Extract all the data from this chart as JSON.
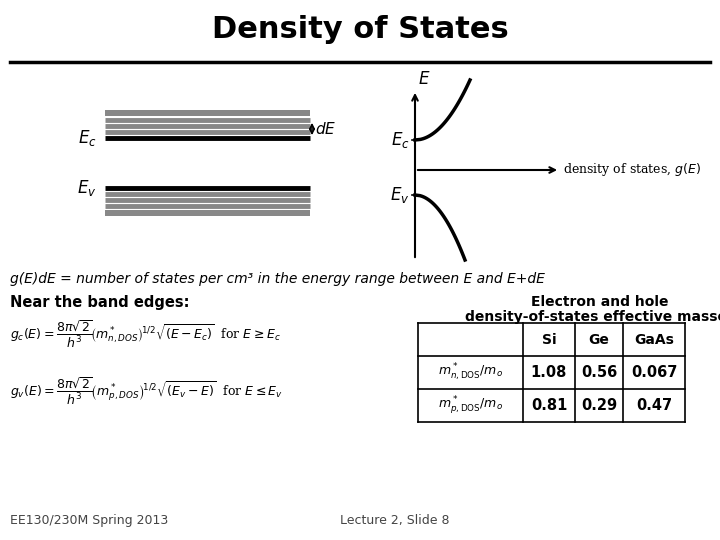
{
  "title": "Density of States",
  "background_color": "#ffffff",
  "title_fontsize": 22,
  "title_fontweight": "bold",
  "footer_left": "EE130/230M Spring 2013",
  "footer_right": "Lecture 2, Slide 8",
  "band_diagram_text": "g(E)dE = number of states per cm³ in the energy range between E and E+dE",
  "near_band_label": "Near the band edges:",
  "table_title1": "Electron and hole",
  "table_title2": "density-of-states effective masses",
  "table_headers": [
    "",
    "Si",
    "Ge",
    "GaAs"
  ],
  "table_row1_vals": [
    "1.08",
    "0.56",
    "0.067"
  ],
  "table_row2_vals": [
    "0.81",
    "0.29",
    "0.47"
  ],
  "gray_color": "#888888",
  "black_color": "#000000",
  "fig_width": 7.2,
  "fig_height": 5.4,
  "dpi": 100
}
